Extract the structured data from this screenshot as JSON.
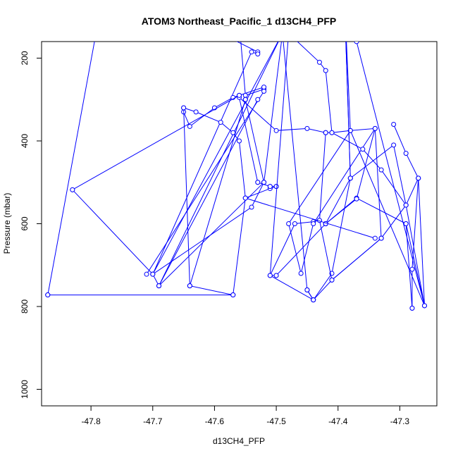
{
  "chart_data": {
    "type": "line",
    "title": "ATOM3 Northeast_Pacific_1 d13CH4_PFP",
    "xlabel": "d13CH4_PFP",
    "ylabel": "Pressure (mbar)",
    "xlim": [
      -47.88,
      -47.24
    ],
    "ylim": [
      1040,
      160
    ],
    "y_reversed": true,
    "x_ticks": [
      -47.8,
      -47.7,
      -47.6,
      -47.5,
      -47.4,
      -47.3
    ],
    "x_tick_labels": [
      "-47.8",
      "-47.7",
      "-47.6",
      "-47.5",
      "-47.4",
      "-47.3"
    ],
    "y_ticks": [
      200,
      400,
      600,
      800,
      1000
    ],
    "y_tick_labels": [
      "200",
      "400",
      "600",
      "800",
      "1000"
    ],
    "grid": false,
    "legend": "none",
    "series_color": "#0000ff",
    "series": [
      {
        "x": [
          -47.87,
          -47.79,
          -47.78,
          -47.58,
          -47.57,
          -47.53,
          -47.53,
          -47.54,
          -47.7,
          -47.49,
          -47.49
        ],
        "y": [
          772,
          125,
          115,
          115,
          155,
          185,
          190,
          185,
          722,
          140,
          140
        ]
      },
      {
        "x": [
          -47.49,
          -47.52,
          -47.69,
          -47.49,
          -47.48,
          -47.48,
          -47.43,
          -47.42,
          -47.41,
          -47.38,
          -47.38,
          -47.39,
          -47.38,
          -47.41,
          -47.44,
          -47.45,
          -47.49,
          -47.52,
          -47.55,
          -47.56,
          -47.55
        ],
        "y": [
          140,
          500,
          750,
          140,
          140,
          140,
          210,
          230,
          380,
          375,
          375,
          40,
          490,
          720,
          784,
          760,
          140,
          140,
          140,
          110,
          115
        ]
      },
      {
        "x": [
          -47.56,
          -47.55,
          -47.52,
          -47.52,
          -47.56,
          -47.57,
          -47.6,
          -47.64,
          -47.65,
          -47.65,
          -47.63,
          -47.59,
          -47.57,
          -47.56,
          -47.55,
          -47.51,
          -47.5,
          -47.51,
          -47.5,
          -47.51,
          -47.53
        ],
        "y": [
          115,
          290,
          275,
          270,
          290,
          295,
          320,
          365,
          330,
          320,
          330,
          355,
          380,
          400,
          538,
          515,
          510,
          510,
          510,
          510,
          500
        ]
      },
      {
        "x": [
          -47.53,
          -47.56,
          -47.5,
          -47.45,
          -47.42,
          -47.42,
          -47.43,
          -47.44,
          -47.47,
          -47.51,
          -47.5,
          -47.5,
          -47.42,
          -47.42,
          -47.42,
          -47.38,
          -47.31,
          -47.29,
          -47.26,
          -47.29,
          -47.28,
          -47.29,
          -47.37,
          -47.42
        ],
        "y": [
          500,
          295,
          375,
          370,
          380,
          380,
          592,
          595,
          600,
          725,
          725,
          725,
          600,
          600,
          600,
          490,
          410,
          555,
          798,
          600,
          804,
          600,
          538,
          600
        ]
      },
      {
        "x": [
          -47.42,
          -47.37,
          -47.34,
          -47.34,
          -47.44,
          -47.46,
          -47.48,
          -47.38,
          -47.26,
          -47.27,
          -47.28,
          -47.28
        ],
        "y": [
          600,
          540,
          370,
          370,
          600,
          720,
          600,
          375,
          798,
          490,
          710,
          804
        ]
      },
      {
        "x": [
          -47.65,
          -47.64,
          -47.64,
          -47.57,
          -47.57,
          -47.87,
          -47.87
        ],
        "y": [
          320,
          750,
          750,
          772,
          772,
          772,
          772
        ]
      },
      {
        "x": [
          -47.83,
          -47.7,
          -47.69,
          -47.7,
          -47.54,
          -47.52,
          -47.52,
          -47.55,
          -47.55
        ],
        "y": [
          518,
          722,
          750,
          722,
          560,
          500,
          500,
          300,
          300
        ]
      },
      {
        "x": [
          -47.45,
          -47.44,
          -47.41,
          -47.33,
          -47.33,
          -47.34,
          -47.38
        ],
        "y": [
          760,
          784,
          736,
          635,
          635,
          370,
          375
        ]
      },
      {
        "x": [
          -47.29,
          -47.33,
          -47.36,
          -47.41,
          -47.42
        ],
        "y": [
          555,
          470,
          420,
          380,
          380
        ]
      },
      {
        "x": [
          -47.27,
          -47.29,
          -47.31
        ],
        "y": [
          490,
          430,
          360
        ]
      },
      {
        "x": [
          -47.33,
          -47.29,
          -47.27
        ],
        "y": [
          635,
          555,
          490
        ]
      },
      {
        "x": [
          -47.39,
          -47.38
        ],
        "y": [
          40,
          490
        ]
      },
      {
        "x": [
          -47.44,
          -47.45
        ],
        "y": [
          784,
          760
        ]
      },
      {
        "x": [
          -47.43,
          -47.41,
          -47.33
        ],
        "y": [
          592,
          736,
          635
        ]
      },
      {
        "x": [
          -47.45,
          -47.37,
          -47.26
        ],
        "y": [
          140,
          160,
          798
        ]
      },
      {
        "x": [
          -47.51,
          -47.44
        ],
        "y": [
          725,
          784
        ]
      },
      {
        "x": [
          -47.83,
          -47.56
        ],
        "y": [
          518,
          290
        ]
      },
      {
        "x": [
          -47.55,
          -47.34
        ],
        "y": [
          538,
          635
        ]
      },
      {
        "x": [
          -47.71,
          -47.52
        ],
        "y": [
          722,
          280
        ]
      },
      {
        "x": [
          -47.64,
          -47.55
        ],
        "y": [
          750,
          300
        ]
      },
      {
        "x": [
          -47.69,
          -47.53
        ],
        "y": [
          750,
          300
        ]
      },
      {
        "x": [
          -47.57,
          -47.55
        ],
        "y": [
          772,
          538
        ]
      },
      {
        "x": [
          -47.51,
          -47.48
        ],
        "y": [
          725,
          140
        ]
      }
    ]
  }
}
